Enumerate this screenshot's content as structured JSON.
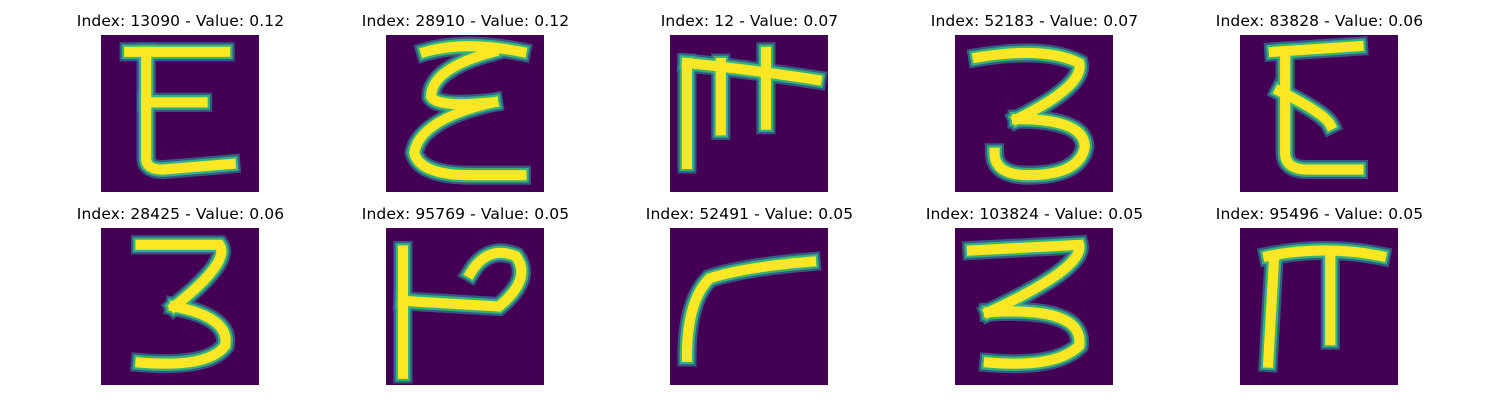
{
  "colors": {
    "background": "#440154",
    "stroke_outer": "#31688e",
    "stroke_mid": "#35b779",
    "stroke_core": "#fde725"
  },
  "panels": [
    {
      "index": "13090",
      "value": "0.12",
      "title": "Index: 13090 - Value: 0.12",
      "glyph": "epsilon"
    },
    {
      "index": "28910",
      "value": "0.12",
      "title": "Index: 28910 - Value: 0.12",
      "glyph": "xi-loop"
    },
    {
      "index": "12",
      "value": "0.07",
      "title": "Index: 12 - Value: 0.07",
      "glyph": "pi-cross"
    },
    {
      "index": "52183",
      "value": "0.07",
      "title": "Index: 52183 - Value: 0.07",
      "glyph": "three-open"
    },
    {
      "index": "83828",
      "value": "0.06",
      "title": "Index: 83828 - Value: 0.06",
      "glyph": "epsilon-narrow"
    },
    {
      "index": "28425",
      "value": "0.06",
      "title": "Index: 28425 - Value: 0.06",
      "glyph": "three"
    },
    {
      "index": "95769",
      "value": "0.05",
      "title": "Index: 95769 - Value: 0.05",
      "glyph": "rho-hook"
    },
    {
      "index": "52491",
      "value": "0.05",
      "title": "Index: 52491 - Value: 0.05",
      "glyph": "gamma"
    },
    {
      "index": "103824",
      "value": "0.05",
      "title": "Index: 103824 - Value: 0.05",
      "glyph": "three-wide"
    },
    {
      "index": "95496",
      "value": "0.05",
      "title": "Index: 95496 - Value: 0.05",
      "glyph": "pi"
    }
  ]
}
